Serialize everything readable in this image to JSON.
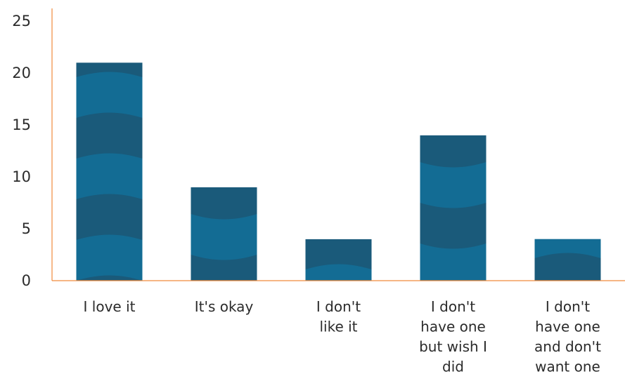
{
  "chart_data": {
    "type": "bar",
    "title": "",
    "xlabel": "",
    "ylabel": "",
    "ylim": [
      0,
      25
    ],
    "yticks": [
      0,
      5,
      10,
      15,
      20,
      25
    ],
    "grid": false,
    "categories": [
      [
        "I love it"
      ],
      [
        "It's okay"
      ],
      [
        "I don't",
        "like it"
      ],
      [
        "I don't",
        "have one",
        "but wish I",
        "did"
      ],
      [
        "I don't",
        "have one",
        "and don't",
        "want one"
      ]
    ],
    "values": [
      21,
      9,
      4,
      14,
      4
    ],
    "colors": {
      "bar_dark": "#1a5a7a",
      "bar_light": "#136c94",
      "axis": "#f08a3c"
    }
  }
}
